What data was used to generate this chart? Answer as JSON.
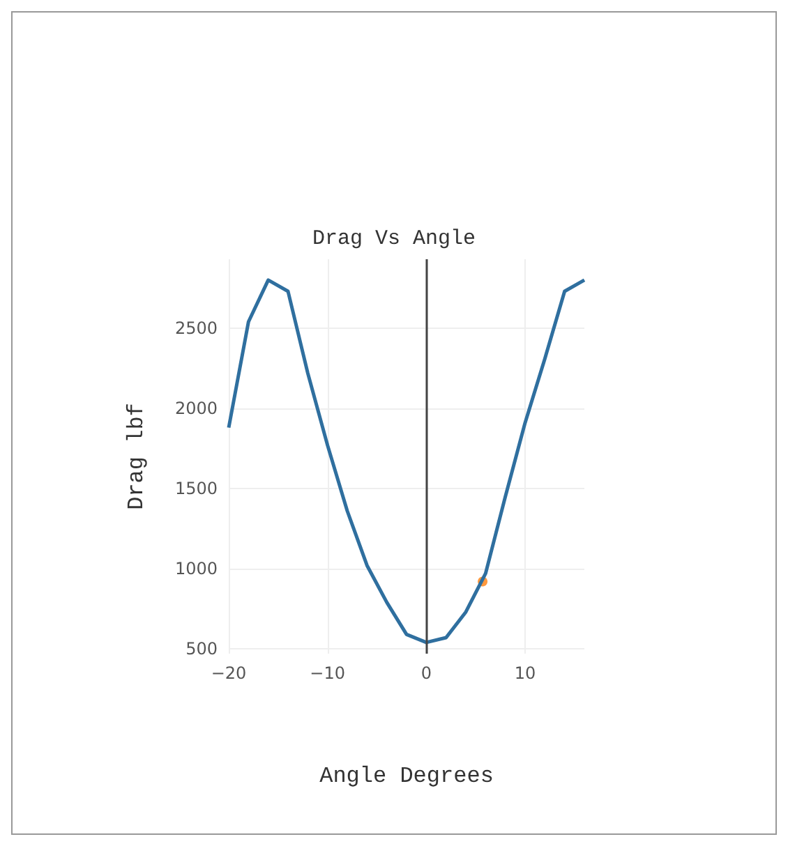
{
  "chart_data": {
    "type": "line",
    "title": "Drag Vs Angle",
    "xlabel": "Angle Degrees",
    "ylabel": "Drag lbf",
    "xlim": [
      -20,
      16
    ],
    "xticks": [
      -20,
      -10,
      0,
      10
    ],
    "ylim": [
      470,
      2930
    ],
    "yticks": [
      500,
      1000,
      1500,
      2000,
      2500
    ],
    "grid": true,
    "series": [
      {
        "color": "#2f6f9f",
        "marker": "none",
        "x": [
          -20,
          -18,
          -16,
          -14,
          -12,
          -10,
          -8,
          -6,
          -4,
          -2,
          0,
          2,
          4,
          6,
          8,
          10,
          12,
          14,
          16
        ],
        "values": [
          1880,
          2540,
          2800,
          2730,
          2220,
          1770,
          1360,
          1020,
          790,
          590,
          540,
          570,
          730,
          970,
          1450,
          1910,
          2310,
          2730,
          2800
        ]
      },
      {
        "type": "scatter",
        "color": "#ff7f0e",
        "marker": "circle",
        "x": [
          5.7
        ],
        "values": [
          920
        ]
      }
    ],
    "ref_lines": [
      {
        "axis": "x",
        "value": 0,
        "color": "#444444"
      }
    ]
  }
}
